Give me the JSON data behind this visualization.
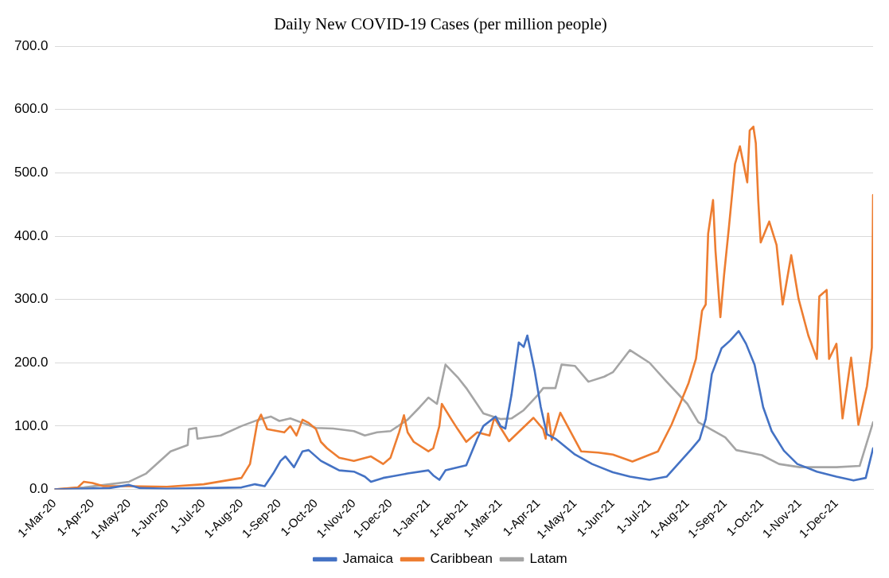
{
  "chart_data": {
    "type": "line",
    "title": "Daily New COVID-19 Cases (per million people)",
    "xlim": [
      "2020-03-01",
      "2021-12-31"
    ],
    "xticks": [
      {
        "value": "2020-03-01",
        "label": "1-Mar-20"
      },
      {
        "value": "2020-04-01",
        "label": "1-Apr-20"
      },
      {
        "value": "2020-05-01",
        "label": "1-May-20"
      },
      {
        "value": "2020-06-01",
        "label": "1-Jun-20"
      },
      {
        "value": "2020-07-01",
        "label": "1-Jul-20"
      },
      {
        "value": "2020-08-01",
        "label": "1-Aug-20"
      },
      {
        "value": "2020-09-01",
        "label": "1-Sep-20"
      },
      {
        "value": "2020-10-01",
        "label": "1-Oct-20"
      },
      {
        "value": "2020-11-01",
        "label": "1-Nov-20"
      },
      {
        "value": "2020-12-01",
        "label": "1-Dec-20"
      },
      {
        "value": "2021-01-01",
        "label": "1-Jan-21"
      },
      {
        "value": "2021-02-01",
        "label": "1-Feb-21"
      },
      {
        "value": "2021-03-01",
        "label": "1-Mar-21"
      },
      {
        "value": "2021-04-01",
        "label": "1-Apr-21"
      },
      {
        "value": "2021-05-01",
        "label": "1-May-21"
      },
      {
        "value": "2021-06-01",
        "label": "1-Jun-21"
      },
      {
        "value": "2021-07-01",
        "label": "1-Jul-21"
      },
      {
        "value": "2021-08-01",
        "label": "1-Aug-21"
      },
      {
        "value": "2021-09-01",
        "label": "1-Sep-21"
      },
      {
        "value": "2021-10-01",
        "label": "1-Oct-21"
      },
      {
        "value": "2021-11-01",
        "label": "1-Nov-21"
      },
      {
        "value": "2021-12-01",
        "label": "1-Dec-21"
      }
    ],
    "ylim": [
      0,
      700
    ],
    "yticks": [
      {
        "value": 0,
        "label": "0.0"
      },
      {
        "value": 100,
        "label": "100.0"
      },
      {
        "value": 200,
        "label": "200.0"
      },
      {
        "value": 300,
        "label": "300.0"
      },
      {
        "value": 400,
        "label": "400.0"
      },
      {
        "value": 500,
        "label": "500.0"
      },
      {
        "value": 600,
        "label": "600.0"
      },
      {
        "value": 700,
        "label": "700.0"
      }
    ],
    "grid": "y",
    "legend": "bottom",
    "marker": "none",
    "line_style": "solid",
    "series": [
      {
        "name": "Jamaica",
        "color": "#4472c4",
        "x": [
          "2020-03-01",
          "2020-04-15",
          "2020-05-01",
          "2020-05-10",
          "2020-06-01",
          "2020-07-01",
          "2020-08-01",
          "2020-08-12",
          "2020-08-20",
          "2020-08-27",
          "2020-09-02",
          "2020-09-06",
          "2020-09-13",
          "2020-09-20",
          "2020-09-25",
          "2020-10-05",
          "2020-10-12",
          "2020-10-20",
          "2020-11-01",
          "2020-11-10",
          "2020-11-15",
          "2020-11-25",
          "2020-12-01",
          "2020-12-15",
          "2021-01-01",
          "2021-01-05",
          "2021-01-10",
          "2021-01-15",
          "2021-02-01",
          "2021-02-10",
          "2021-02-15",
          "2021-02-25",
          "2021-03-01",
          "2021-03-05",
          "2021-03-10",
          "2021-03-16",
          "2021-03-20",
          "2021-03-23",
          "2021-03-29",
          "2021-04-03",
          "2021-04-08",
          "2021-04-15",
          "2021-05-01",
          "2021-05-15",
          "2021-06-01",
          "2021-06-15",
          "2021-07-01",
          "2021-07-15",
          "2021-08-04",
          "2021-08-11",
          "2021-08-16",
          "2021-08-21",
          "2021-08-29",
          "2021-09-05",
          "2021-09-12",
          "2021-09-18",
          "2021-09-25",
          "2021-10-02",
          "2021-10-09",
          "2021-10-19",
          "2021-10-30",
          "2021-11-15",
          "2021-12-01",
          "2021-12-15",
          "2021-12-25",
          "2021-12-31"
        ],
        "values": [
          0,
          2,
          7,
          2,
          1,
          2,
          3,
          8,
          5,
          25,
          45,
          52,
          35,
          60,
          62,
          45,
          38,
          30,
          28,
          20,
          12,
          18,
          20,
          25,
          30,
          22,
          15,
          30,
          38,
          80,
          100,
          115,
          100,
          96,
          149,
          232,
          225,
          243,
          187,
          130,
          87,
          80,
          55,
          40,
          27,
          20,
          15,
          20,
          63,
          79,
          111,
          182,
          223,
          235,
          250,
          230,
          197,
          130,
          92,
          61,
          40,
          28,
          20,
          14,
          18,
          65
        ]
      },
      {
        "name": "Caribbean",
        "color": "#ed7d31",
        "x": [
          "2020-03-01",
          "2020-03-20",
          "2020-03-25",
          "2020-04-01",
          "2020-04-10",
          "2020-05-01",
          "2020-06-01",
          "2020-07-01",
          "2020-08-01",
          "2020-08-08",
          "2020-08-14",
          "2020-08-17",
          "2020-08-22",
          "2020-09-05",
          "2020-09-10",
          "2020-09-15",
          "2020-09-20",
          "2020-09-25",
          "2020-10-01",
          "2020-10-05",
          "2020-10-10",
          "2020-10-20",
          "2020-11-01",
          "2020-11-15",
          "2020-11-25",
          "2020-12-01",
          "2020-12-08",
          "2020-12-12",
          "2020-12-15",
          "2020-12-20",
          "2021-01-01",
          "2021-01-05",
          "2021-01-10",
          "2021-01-12",
          "2021-01-20",
          "2021-01-25",
          "2021-02-01",
          "2021-02-10",
          "2021-02-20",
          "2021-02-24",
          "2021-03-08",
          "2021-03-28",
          "2021-04-05",
          "2021-04-07",
          "2021-04-09",
          "2021-04-12",
          "2021-04-19",
          "2021-05-06",
          "2021-05-20",
          "2021-06-01",
          "2021-06-17",
          "2021-07-08",
          "2021-07-19",
          "2021-08-02",
          "2021-08-08",
          "2021-08-13",
          "2021-08-16",
          "2021-08-18",
          "2021-08-22",
          "2021-08-24",
          "2021-08-28",
          "2021-08-31",
          "2021-09-04",
          "2021-09-09",
          "2021-09-13",
          "2021-09-19",
          "2021-09-21",
          "2021-09-24",
          "2021-09-26",
          "2021-09-28",
          "2021-09-30",
          "2021-10-07",
          "2021-10-13",
          "2021-10-18",
          "2021-10-25",
          "2021-10-31",
          "2021-11-08",
          "2021-11-15",
          "2021-11-17",
          "2021-11-23",
          "2021-11-25",
          "2021-12-01",
          "2021-12-06",
          "2021-12-13",
          "2021-12-19",
          "2021-12-26",
          "2021-12-30",
          "2021-12-31"
        ],
        "values": [
          0,
          3,
          12,
          10,
          5,
          5,
          4,
          8,
          18,
          40,
          106,
          118,
          95,
          90,
          100,
          85,
          110,
          105,
          95,
          75,
          65,
          50,
          45,
          52,
          40,
          50,
          90,
          117,
          90,
          75,
          60,
          65,
          100,
          135,
          110,
          95,
          75,
          90,
          85,
          113,
          76,
          113,
          95,
          80,
          120,
          78,
          121,
          60,
          58,
          55,
          44,
          60,
          102,
          168,
          206,
          282,
          292,
          404,
          457,
          377,
          272,
          338,
          414,
          514,
          542,
          485,
          567,
          573,
          547,
          457,
          390,
          423,
          386,
          292,
          370,
          301,
          243,
          206,
          305,
          315,
          206,
          230,
          112,
          208,
          102,
          163,
          224,
          465
        ]
      },
      {
        "name": "Latam",
        "color": "#a5a5a5",
        "x": [
          "2020-03-01",
          "2020-03-25",
          "2020-04-15",
          "2020-05-01",
          "2020-05-15",
          "2020-06-04",
          "2020-06-18",
          "2020-06-19",
          "2020-06-25",
          "2020-06-26",
          "2020-07-15",
          "2020-08-01",
          "2020-08-15",
          "2020-08-25",
          "2020-09-01",
          "2020-09-10",
          "2020-09-20",
          "2020-10-01",
          "2020-10-15",
          "2020-11-01",
          "2020-11-10",
          "2020-11-20",
          "2020-12-01",
          "2020-12-15",
          "2020-12-25",
          "2021-01-01",
          "2021-01-08",
          "2021-01-15",
          "2021-01-25",
          "2021-02-01",
          "2021-02-15",
          "2021-03-01",
          "2021-03-10",
          "2021-03-20",
          "2021-04-01",
          "2021-04-05",
          "2021-04-15",
          "2021-04-20",
          "2021-05-01",
          "2021-05-12",
          "2021-05-25",
          "2021-06-01",
          "2021-06-15",
          "2021-07-01",
          "2021-07-15",
          "2021-08-01",
          "2021-08-10",
          "2021-09-01",
          "2021-09-10",
          "2021-10-01",
          "2021-10-15",
          "2021-11-01",
          "2021-12-01",
          "2021-12-20",
          "2021-12-31"
        ],
        "values": [
          0,
          3,
          8,
          12,
          25,
          60,
          70,
          95,
          97,
          80,
          85,
          100,
          110,
          115,
          108,
          112,
          105,
          97,
          96,
          92,
          85,
          90,
          92,
          110,
          130,
          145,
          135,
          197,
          177,
          160,
          120,
          111,
          112,
          125,
          150,
          160,
          160,
          197,
          195,
          170,
          178,
          185,
          220,
          200,
          170,
          135,
          106,
          82,
          62,
          54,
          40,
          35,
          35,
          37,
          106
        ]
      }
    ]
  }
}
